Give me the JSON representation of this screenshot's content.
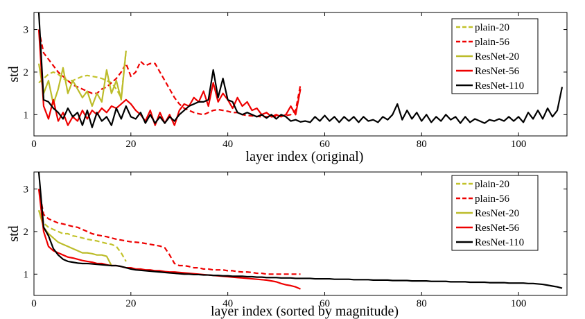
{
  "chart_data": [
    {
      "type": "line",
      "xlabel": "layer index (original)",
      "ylabel": "std",
      "xlim": [
        0,
        110
      ],
      "ylim": [
        0.5,
        3.4
      ],
      "xticks": [
        0,
        20,
        40,
        60,
        80,
        100
      ],
      "yticks": [
        1,
        2,
        3
      ],
      "legend_position": "top-right",
      "series": [
        {
          "name": "plain-20",
          "color": "#c2c22a",
          "dash": "dashed",
          "values": [
            1.75,
            1.85,
            1.95,
            2.0,
            1.95,
            1.85,
            1.8,
            1.8,
            1.85,
            1.9,
            1.92,
            1.9,
            1.88,
            1.85,
            1.8,
            1.75,
            1.6,
            1.4,
            2.5
          ]
        },
        {
          "name": "plain-56",
          "color": "#ee0000",
          "dash": "dashed",
          "values": [
            3.0,
            2.45,
            2.3,
            2.15,
            2.0,
            1.9,
            1.8,
            1.7,
            1.65,
            1.6,
            1.55,
            1.5,
            1.5,
            1.6,
            1.65,
            1.75,
            1.85,
            2.0,
            2.2,
            1.9,
            2.0,
            2.25,
            2.15,
            2.2,
            2.2,
            2.0,
            1.8,
            1.6,
            1.4,
            1.25,
            1.15,
            1.1,
            1.05,
            1.02,
            1.0,
            1.05,
            1.1,
            1.12,
            1.1,
            1.08,
            1.05,
            1.05,
            1.0,
            0.98,
            0.97,
            0.96,
            0.95,
            0.95,
            0.95,
            0.96,
            0.97,
            0.98,
            1.0,
            1.1,
            1.7
          ]
        },
        {
          "name": "ResNet-20",
          "color": "#bcbc2a",
          "dash": "solid",
          "values": [
            2.2,
            1.5,
            1.8,
            1.25,
            1.6,
            2.1,
            1.5,
            1.8,
            1.6,
            1.4,
            1.55,
            1.2,
            1.5,
            1.3,
            2.05,
            1.5,
            1.8,
            1.35,
            2.5
          ]
        },
        {
          "name": "ResNet-56",
          "color": "#ee0000",
          "dash": "solid",
          "values": [
            3.0,
            1.2,
            0.9,
            1.35,
            0.85,
            1.05,
            0.75,
            0.95,
            0.85,
            1.1,
            0.9,
            1.1,
            1.0,
            1.15,
            1.05,
            1.2,
            1.15,
            1.25,
            1.35,
            1.25,
            1.1,
            1.0,
            0.85,
            1.1,
            0.75,
            1.05,
            0.8,
            1.0,
            0.75,
            1.1,
            1.25,
            1.2,
            1.4,
            1.3,
            1.55,
            1.2,
            1.75,
            1.3,
            1.5,
            1.35,
            1.15,
            1.4,
            1.2,
            1.3,
            1.1,
            1.15,
            1.0,
            1.05,
            0.95,
            1.0,
            0.95,
            1.0,
            1.2,
            1.0,
            1.6
          ]
        },
        {
          "name": "ResNet-110",
          "color": "#000000",
          "dash": "solid",
          "values": [
            3.4,
            1.35,
            1.3,
            1.15,
            1.05,
            0.9,
            1.15,
            0.95,
            1.05,
            0.75,
            1.1,
            0.7,
            1.05,
            0.85,
            0.95,
            0.75,
            1.15,
            0.9,
            1.2,
            0.95,
            0.9,
            1.05,
            0.8,
            1.0,
            0.8,
            0.95,
            0.8,
            0.95,
            0.85,
            1.0,
            1.1,
            1.2,
            1.25,
            1.3,
            1.3,
            1.35,
            2.05,
            1.4,
            1.85,
            1.35,
            1.3,
            1.05,
            1.0,
            1.05,
            1.0,
            0.95,
            1.0,
            0.92,
            1.0,
            0.9,
            1.0,
            0.95,
            0.85,
            0.88,
            0.83,
            0.85,
            0.82,
            0.95,
            0.85,
            0.98,
            0.85,
            0.95,
            0.82,
            0.95,
            0.85,
            0.95,
            0.82,
            0.95,
            0.85,
            0.88,
            0.82,
            0.95,
            0.88,
            1.0,
            1.25,
            0.88,
            1.1,
            0.9,
            1.05,
            0.85,
            1.0,
            0.82,
            0.95,
            0.85,
            1.0,
            0.88,
            0.95,
            0.8,
            0.95,
            0.82,
            0.9,
            0.85,
            0.8,
            0.88,
            0.85,
            0.9,
            0.85,
            0.95,
            0.85,
            0.95,
            0.82,
            1.05,
            0.9,
            1.1,
            0.9,
            1.15,
            0.95,
            1.1,
            1.65
          ]
        }
      ]
    },
    {
      "type": "line",
      "xlabel": "layer index (sorted by magnitude)",
      "ylabel": "std",
      "xlim": [
        0,
        110
      ],
      "ylim": [
        0.5,
        3.4
      ],
      "xticks": [
        0,
        20,
        40,
        60,
        80,
        100
      ],
      "yticks": [
        1,
        2,
        3
      ],
      "legend_position": "top-right",
      "series": [
        {
          "name": "plain-20",
          "color": "#c2c22a",
          "dash": "dashed",
          "values": [
            2.5,
            2.2,
            2.1,
            2.05,
            2.0,
            1.95,
            1.95,
            1.9,
            1.88,
            1.85,
            1.82,
            1.8,
            1.78,
            1.75,
            1.72,
            1.7,
            1.65,
            1.5,
            1.3
          ]
        },
        {
          "name": "plain-56",
          "color": "#ee0000",
          "dash": "dashed",
          "values": [
            3.0,
            2.4,
            2.3,
            2.25,
            2.2,
            2.18,
            2.15,
            2.12,
            2.1,
            2.05,
            2.0,
            1.95,
            1.92,
            1.9,
            1.88,
            1.85,
            1.82,
            1.8,
            1.78,
            1.76,
            1.75,
            1.74,
            1.72,
            1.7,
            1.68,
            1.66,
            1.62,
            1.45,
            1.25,
            1.2,
            1.2,
            1.18,
            1.15,
            1.15,
            1.12,
            1.12,
            1.1,
            1.1,
            1.1,
            1.08,
            1.08,
            1.06,
            1.05,
            1.05,
            1.04,
            1.02,
            1.02,
            1.0,
            1.0,
            1.0,
            1.0,
            1.0,
            1.0,
            1.0,
            1.0
          ]
        },
        {
          "name": "ResNet-20",
          "color": "#bcbc2a",
          "dash": "solid",
          "values": [
            2.5,
            2.1,
            1.95,
            1.85,
            1.75,
            1.7,
            1.65,
            1.6,
            1.55,
            1.5,
            1.5,
            1.48,
            1.45,
            1.45,
            1.42,
            1.2
          ]
        },
        {
          "name": "ResNet-56",
          "color": "#ee0000",
          "dash": "solid",
          "values": [
            3.0,
            2.0,
            1.65,
            1.55,
            1.5,
            1.45,
            1.4,
            1.38,
            1.35,
            1.32,
            1.3,
            1.28,
            1.25,
            1.25,
            1.22,
            1.2,
            1.2,
            1.18,
            1.15,
            1.15,
            1.12,
            1.12,
            1.1,
            1.1,
            1.08,
            1.08,
            1.06,
            1.05,
            1.05,
            1.04,
            1.03,
            1.02,
            1.01,
            1.0,
            0.99,
            0.98,
            0.97,
            0.96,
            0.95,
            0.94,
            0.93,
            0.92,
            0.91,
            0.9,
            0.89,
            0.88,
            0.87,
            0.86,
            0.84,
            0.82,
            0.78,
            0.75,
            0.73,
            0.7,
            0.65
          ]
        },
        {
          "name": "ResNet-110",
          "color": "#000000",
          "dash": "solid",
          "values": [
            3.4,
            2.1,
            1.9,
            1.6,
            1.45,
            1.35,
            1.3,
            1.28,
            1.26,
            1.25,
            1.25,
            1.24,
            1.23,
            1.22,
            1.21,
            1.2,
            1.2,
            1.18,
            1.15,
            1.12,
            1.1,
            1.09,
            1.08,
            1.07,
            1.06,
            1.05,
            1.04,
            1.03,
            1.02,
            1.01,
            1.0,
            1.0,
            0.99,
            0.99,
            0.98,
            0.98,
            0.97,
            0.97,
            0.96,
            0.96,
            0.95,
            0.95,
            0.95,
            0.94,
            0.94,
            0.93,
            0.93,
            0.92,
            0.92,
            0.92,
            0.91,
            0.91,
            0.91,
            0.9,
            0.9,
            0.9,
            0.9,
            0.89,
            0.89,
            0.89,
            0.89,
            0.88,
            0.88,
            0.88,
            0.88,
            0.87,
            0.87,
            0.87,
            0.87,
            0.86,
            0.86,
            0.86,
            0.86,
            0.85,
            0.85,
            0.85,
            0.85,
            0.84,
            0.84,
            0.84,
            0.84,
            0.83,
            0.83,
            0.83,
            0.83,
            0.82,
            0.82,
            0.82,
            0.82,
            0.81,
            0.81,
            0.81,
            0.81,
            0.8,
            0.8,
            0.8,
            0.8,
            0.79,
            0.79,
            0.79,
            0.79,
            0.78,
            0.78,
            0.77,
            0.76,
            0.74,
            0.72,
            0.7,
            0.67
          ]
        }
      ]
    }
  ]
}
